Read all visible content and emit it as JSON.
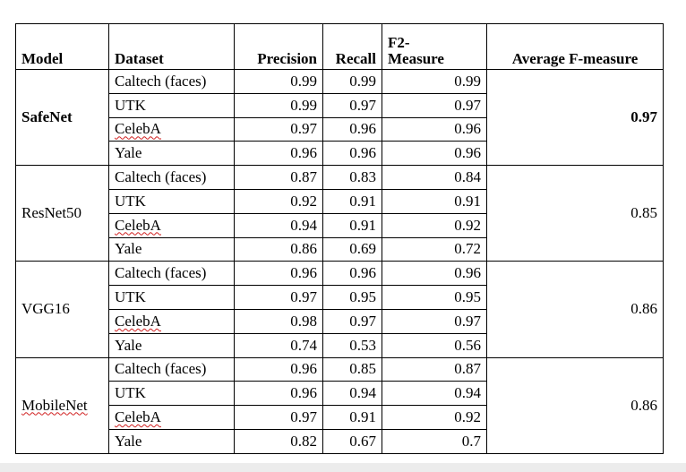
{
  "headers": {
    "model": "Model",
    "dataset": "Dataset",
    "precision": "Precision",
    "recall": "Recall",
    "f2_line1": "F2-",
    "f2_line2": "Measure",
    "average": "Average F-measure"
  },
  "groups": [
    {
      "model": "SafeNet",
      "average": "0.97",
      "rows": [
        {
          "dataset": "Caltech (faces)",
          "precision": "0.99",
          "recall": "0.99",
          "f2": "0.99"
        },
        {
          "dataset": "UTK",
          "precision": "0.99",
          "recall": "0.97",
          "f2": "0.97"
        },
        {
          "dataset": "CelebA",
          "precision": "0.97",
          "recall": "0.96",
          "f2": "0.96"
        },
        {
          "dataset": "Yale",
          "precision": "0.96",
          "recall": "0.96",
          "f2": "0.96"
        }
      ]
    },
    {
      "model": "ResNet50",
      "average": "0.85",
      "rows": [
        {
          "dataset": "Caltech (faces)",
          "precision": "0.87",
          "recall": "0.83",
          "f2": "0.84"
        },
        {
          "dataset": "UTK",
          "precision": "0.92",
          "recall": "0.91",
          "f2": "0.91"
        },
        {
          "dataset": "CelebA",
          "precision": "0.94",
          "recall": "0.91",
          "f2": "0.92"
        },
        {
          "dataset": "Yale",
          "precision": "0.86",
          "recall": "0.69",
          "f2": "0.72"
        }
      ]
    },
    {
      "model": "VGG16",
      "average": "0.86",
      "rows": [
        {
          "dataset": "Caltech (faces)",
          "precision": "0.96",
          "recall": "0.96",
          "f2": "0.96"
        },
        {
          "dataset": "UTK",
          "precision": "0.97",
          "recall": "0.95",
          "f2": "0.95"
        },
        {
          "dataset": "CelebA",
          "precision": "0.98",
          "recall": "0.97",
          "f2": "0.97"
        },
        {
          "dataset": "Yale",
          "precision": "0.74",
          "recall": "0.53",
          "f2": "0.56"
        }
      ]
    },
    {
      "model": "MobileNet",
      "average": "0.86",
      "rows": [
        {
          "dataset": "Caltech (faces)",
          "precision": "0.96",
          "recall": "0.85",
          "f2": "0.87"
        },
        {
          "dataset": "UTK",
          "precision": "0.96",
          "recall": "0.94",
          "f2": "0.94"
        },
        {
          "dataset": "CelebA",
          "precision": "0.97",
          "recall": "0.91",
          "f2": "0.92"
        },
        {
          "dataset": "Yale",
          "precision": "0.82",
          "recall": "0.67",
          "f2": "0.7"
        }
      ]
    }
  ]
}
